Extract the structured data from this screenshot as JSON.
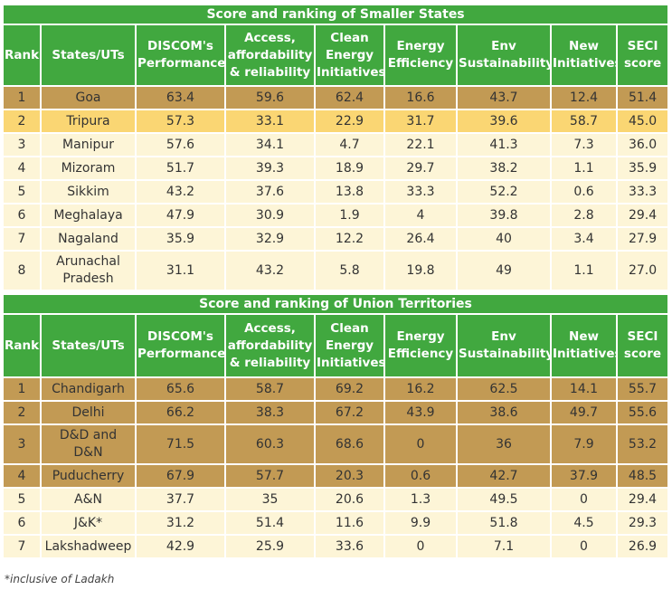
{
  "chart_data": [
    {
      "type": "table",
      "title": "Score and ranking of Smaller States",
      "columns": [
        "Rank",
        "States/UTs",
        "DISCOM's Performance",
        "Access, affordability & reliability",
        "Clean Energy Initiatives",
        "Energy Efficiency",
        "Env Sustainability",
        "New Initiatives",
        "SECI score"
      ],
      "header_lines": [
        [
          "Rank"
        ],
        [
          "States/UTs"
        ],
        [
          "DISCOM's",
          "Performance"
        ],
        [
          "Access,",
          "affordability",
          "& reliability"
        ],
        [
          "Clean",
          "Energy",
          "Initiatives"
        ],
        [
          "Energy",
          "Efficiency"
        ],
        [
          "Env",
          "Sustainability"
        ],
        [
          "New",
          "Initiatives"
        ],
        [
          "SECI",
          "score"
        ]
      ],
      "rows": [
        {
          "rank": "1",
          "name_lines": [
            "Goa"
          ],
          "values": [
            "63.4",
            "59.6",
            "62.4",
            "16.6",
            "43.7",
            "12.4",
            "51.4"
          ],
          "style": "top"
        },
        {
          "rank": "2",
          "name_lines": [
            "Tripura"
          ],
          "values": [
            "57.3",
            "33.1",
            "22.9",
            "31.7",
            "39.6",
            "58.7",
            "45.0"
          ],
          "style": "first"
        },
        {
          "rank": "3",
          "name_lines": [
            "Manipur"
          ],
          "values": [
            "57.6",
            "34.1",
            "4.7",
            "22.1",
            "41.3",
            "7.3",
            "36.0"
          ],
          "style": "plain"
        },
        {
          "rank": "4",
          "name_lines": [
            "Mizoram"
          ],
          "values": [
            "51.7",
            "39.3",
            "18.9",
            "29.7",
            "38.2",
            "1.1",
            "35.9"
          ],
          "style": "plain"
        },
        {
          "rank": "5",
          "name_lines": [
            "Sikkim"
          ],
          "values": [
            "43.2",
            "37.6",
            "13.8",
            "33.3",
            "52.2",
            "0.6",
            "33.3"
          ],
          "style": "plain"
        },
        {
          "rank": "6",
          "name_lines": [
            "Meghalaya"
          ],
          "values": [
            "47.9",
            "30.9",
            "1.9",
            "4",
            "39.8",
            "2.8",
            "29.4"
          ],
          "style": "plain"
        },
        {
          "rank": "7",
          "name_lines": [
            "Nagaland"
          ],
          "values": [
            "35.9",
            "32.9",
            "12.2",
            "26.4",
            "40",
            "3.4",
            "27.9"
          ],
          "style": "plain"
        },
        {
          "rank": "8",
          "name_lines": [
            "Arunachal",
            "Pradesh"
          ],
          "values": [
            "31.1",
            "43.2",
            "5.8",
            "19.8",
            "49",
            "1.1",
            "27.0"
          ],
          "style": "plain"
        }
      ]
    },
    {
      "type": "table",
      "title": "Score and ranking of Union Territories",
      "columns": [
        "Rank",
        "States/UTs",
        "DISCOM's Performance",
        "Access, affordability & reliability",
        "Clean Energy Initiatives",
        "Energy Efficiency",
        "Env Sustainability",
        "New Initiatives",
        "SECI score"
      ],
      "header_lines": [
        [
          "Rank"
        ],
        [
          "States/UTs"
        ],
        [
          "DISCOM's",
          "Performance"
        ],
        [
          "Access,",
          "affordability",
          "& reliability"
        ],
        [
          "Clean",
          "Energy",
          "Initiatives"
        ],
        [
          "Energy",
          "Efficiency"
        ],
        [
          "Env",
          "Sustainability"
        ],
        [
          "New",
          "Initiatives"
        ],
        [
          "SECI",
          "score"
        ]
      ],
      "rows": [
        {
          "rank": "1",
          "name_lines": [
            "Chandigarh"
          ],
          "values": [
            "65.6",
            "58.7",
            "69.2",
            "16.2",
            "62.5",
            "14.1",
            "55.7"
          ],
          "style": "top"
        },
        {
          "rank": "2",
          "name_lines": [
            "Delhi"
          ],
          "values": [
            "66.2",
            "38.3",
            "67.2",
            "43.9",
            "38.6",
            "49.7",
            "55.6"
          ],
          "style": "top"
        },
        {
          "rank": "3",
          "name_lines": [
            "D&D and",
            "D&N"
          ],
          "values": [
            "71.5",
            "60.3",
            "68.6",
            "0",
            "36",
            "7.9",
            "53.2"
          ],
          "style": "top"
        },
        {
          "rank": "4",
          "name_lines": [
            "Puducherry"
          ],
          "values": [
            "67.9",
            "57.7",
            "20.3",
            "0.6",
            "42.7",
            "37.9",
            "48.5"
          ],
          "style": "top"
        },
        {
          "rank": "5",
          "name_lines": [
            "A&N"
          ],
          "values": [
            "37.7",
            "35",
            "20.6",
            "1.3",
            "49.5",
            "0",
            "29.4"
          ],
          "style": "plain"
        },
        {
          "rank": "6",
          "name_lines": [
            "J&K*"
          ],
          "values": [
            "31.2",
            "51.4",
            "11.6",
            "9.9",
            "51.8",
            "4.5",
            "29.3"
          ],
          "style": "plain"
        },
        {
          "rank": "7",
          "name_lines": [
            "Lakshadweep"
          ],
          "values": [
            "42.9",
            "25.9",
            "33.6",
            "0",
            "7.1",
            "0",
            "26.9"
          ],
          "style": "plain"
        }
      ]
    }
  ],
  "colors": {
    "header_green": "#41a83f",
    "top_tier": "#c29a54",
    "second_tier": "#fad673",
    "base_tier": "#fdf5d7"
  },
  "footnote": "*inclusive of Ladakh"
}
